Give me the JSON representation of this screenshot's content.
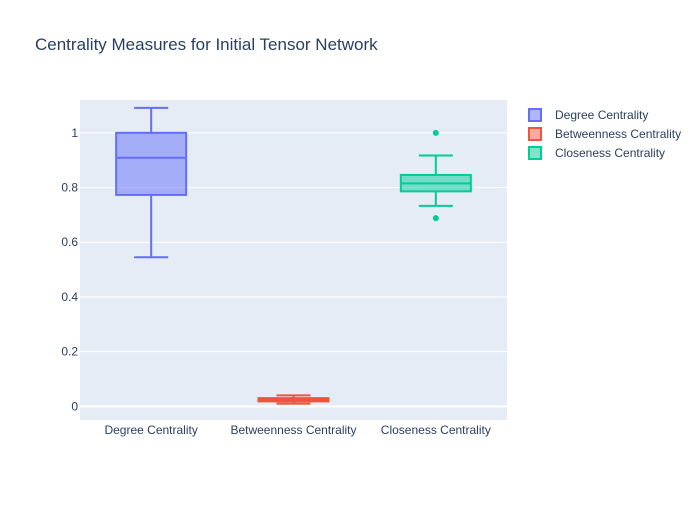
{
  "chart_data": {
    "type": "box",
    "title": "Centrality Measures for Initial Tensor Network",
    "xlabel": "",
    "ylabel": "",
    "ylim": [
      -0.05,
      1.12
    ],
    "yticks": [
      0,
      0.2,
      0.4,
      0.6,
      0.8,
      1
    ],
    "ytick_labels": [
      "0",
      "0.2",
      "0.4",
      "0.6",
      "0.8",
      "1"
    ],
    "grid": true,
    "legend_position": "top-right",
    "categories": [
      "Degree Centrality",
      "Betweenness Centrality",
      "Closeness Centrality"
    ],
    "series": [
      {
        "name": "Degree Centrality",
        "category": "Degree Centrality",
        "color": "#636efa",
        "fill": "rgba(99,110,250,0.5)",
        "min": 0.545,
        "q1": 0.773,
        "median": 0.909,
        "q3": 1.0,
        "max": 1.091,
        "outliers": []
      },
      {
        "name": "Betweenness Centrality",
        "category": "Betweenness Centrality",
        "color": "#ef553b",
        "fill": "rgba(239,85,59,0.5)",
        "min": 0.01,
        "q1": 0.018,
        "median": 0.024,
        "q3": 0.03,
        "max": 0.04,
        "outliers": []
      },
      {
        "name": "Closeness Centrality",
        "category": "Closeness Centrality",
        "color": "#00cc96",
        "fill": "rgba(0,204,150,0.5)",
        "min": 0.733,
        "q1": 0.786,
        "median": 0.815,
        "q3": 0.846,
        "max": 0.917,
        "outliers": [
          1.0,
          0.688
        ]
      }
    ],
    "colors": {
      "plot_background": "#e5ecf6",
      "grid": "#ffffff",
      "text": "#2a3f5f"
    }
  }
}
